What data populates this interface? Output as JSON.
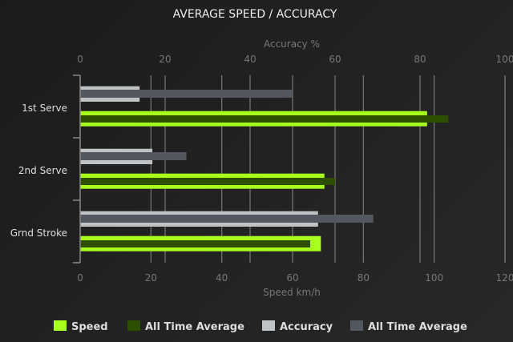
{
  "chart_data": {
    "type": "bar",
    "orientation": "horizontal",
    "title": "AVERAGE SPEED / ACCURACY",
    "categories": [
      "1st Serve",
      "2nd Serve",
      "Grnd Stroke"
    ],
    "top_axis": {
      "label": "Accuracy %",
      "range": [
        0,
        100
      ],
      "ticks": [
        0,
        20,
        40,
        60,
        80,
        100
      ]
    },
    "bottom_axis": {
      "label": "Speed km/h",
      "range": [
        0,
        120
      ],
      "ticks": [
        0,
        20,
        40,
        60,
        80,
        100,
        120
      ]
    },
    "grid": true,
    "legend_position": "bottom",
    "series": [
      {
        "name": "Speed",
        "axis": "bottom",
        "color": "#a8ff1e",
        "values": [
          98,
          69,
          68
        ]
      },
      {
        "name": "All Time Average",
        "axis": "bottom",
        "color": "#2f4f00",
        "values": [
          104,
          72,
          65
        ]
      },
      {
        "name": "Accuracy",
        "axis": "top",
        "color": "#bfc3c6",
        "values": [
          14,
          17,
          56
        ]
      },
      {
        "name": "All Time Average",
        "axis": "top",
        "color": "#535860",
        "values": [
          50,
          25,
          69
        ]
      }
    ]
  }
}
